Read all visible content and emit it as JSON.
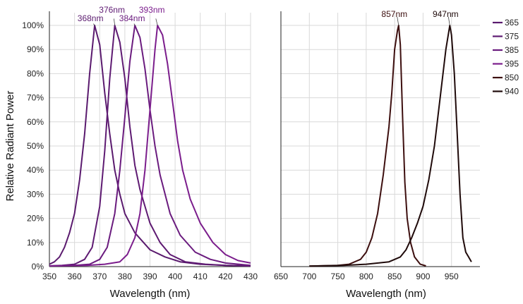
{
  "chart_data": [
    {
      "type": "line",
      "panel": "left",
      "xlabel": "Wavelength (nm)",
      "ylabel": "Relative Radiant Power",
      "xlim": [
        350,
        430
      ],
      "ylim": [
        0,
        100
      ],
      "x_ticks": [
        "350",
        "360",
        "370",
        "380",
        "390",
        "400",
        "410",
        "420",
        "430"
      ],
      "y_ticks": [
        "0%",
        "10%",
        "20%",
        "30%",
        "40%",
        "50%",
        "60%",
        "70%",
        "80%",
        "90%",
        "100%"
      ],
      "grid": true,
      "peak_labels": [
        "368nm",
        "376nm",
        "384nm",
        "393nm"
      ],
      "series": [
        {
          "name": "365",
          "color": "#5a1a6e",
          "peak": 368,
          "fwhm": 10,
          "points": [
            [
              350,
              1
            ],
            [
              352,
              2
            ],
            [
              354,
              4
            ],
            [
              356,
              8
            ],
            [
              358,
              14
            ],
            [
              360,
              22
            ],
            [
              362,
              36
            ],
            [
              364,
              55
            ],
            [
              366,
              80
            ],
            [
              368,
              100
            ],
            [
              370,
              92
            ],
            [
              372,
              72
            ],
            [
              374,
              55
            ],
            [
              376,
              40
            ],
            [
              378,
              30
            ],
            [
              380,
              22
            ],
            [
              384,
              14
            ],
            [
              390,
              7
            ],
            [
              396,
              4
            ],
            [
              402,
              2
            ],
            [
              410,
              1
            ],
            [
              420,
              0.5
            ],
            [
              430,
              0.3
            ]
          ]
        },
        {
          "name": "375",
          "color": "#5e1a72",
          "peak": 376,
          "fwhm": 10,
          "points": [
            [
              350,
              0.3
            ],
            [
              355,
              0.5
            ],
            [
              360,
              1
            ],
            [
              364,
              3
            ],
            [
              367,
              8
            ],
            [
              370,
              25
            ],
            [
              372,
              48
            ],
            [
              374,
              78
            ],
            [
              376,
              100
            ],
            [
              378,
              93
            ],
            [
              380,
              78
            ],
            [
              382,
              58
            ],
            [
              384,
              42
            ],
            [
              386,
              32
            ],
            [
              390,
              18
            ],
            [
              394,
              10
            ],
            [
              398,
              5
            ],
            [
              404,
              2
            ],
            [
              412,
              1
            ],
            [
              420,
              0.5
            ],
            [
              430,
              0.3
            ]
          ]
        },
        {
          "name": "385",
          "color": "#6a1b7e",
          "peak": 384,
          "fwhm": 12,
          "points": [
            [
              350,
              0.3
            ],
            [
              360,
              0.5
            ],
            [
              366,
              1
            ],
            [
              370,
              3
            ],
            [
              373,
              8
            ],
            [
              376,
              22
            ],
            [
              378,
              40
            ],
            [
              380,
              62
            ],
            [
              382,
              85
            ],
            [
              384,
              100
            ],
            [
              386,
              95
            ],
            [
              388,
              82
            ],
            [
              390,
              65
            ],
            [
              392,
              50
            ],
            [
              394,
              38
            ],
            [
              398,
              22
            ],
            [
              402,
              13
            ],
            [
              408,
              6
            ],
            [
              414,
              3
            ],
            [
              420,
              1.5
            ],
            [
              430,
              0.5
            ]
          ]
        },
        {
          "name": "395",
          "color": "#7b1d8c",
          "peak": 393,
          "fwhm": 12,
          "points": [
            [
              350,
              0.3
            ],
            [
              365,
              0.5
            ],
            [
              372,
              1
            ],
            [
              378,
              2
            ],
            [
              381,
              5
            ],
            [
              384,
              12
            ],
            [
              386,
              22
            ],
            [
              388,
              40
            ],
            [
              390,
              65
            ],
            [
              392,
              90
            ],
            [
              393,
              100
            ],
            [
              395,
              96
            ],
            [
              397,
              84
            ],
            [
              399,
              68
            ],
            [
              401,
              52
            ],
            [
              403,
              40
            ],
            [
              406,
              28
            ],
            [
              410,
              18
            ],
            [
              415,
              10
            ],
            [
              420,
              5
            ],
            [
              425,
              2.5
            ],
            [
              430,
              1.5
            ]
          ]
        },
        {
          "name": "850",
          "color": "#3d0f0f",
          "peak": 857,
          "fwhm": 30,
          "points": [
            [
              700,
              0.2
            ],
            [
              750,
              0.5
            ],
            [
              770,
              1
            ],
            [
              790,
              3
            ],
            [
              800,
              6
            ],
            [
              810,
              12
            ],
            [
              820,
              22
            ],
            [
              830,
              38
            ],
            [
              840,
              58
            ],
            [
              845,
              72
            ],
            [
              850,
              90
            ],
            [
              855,
              98
            ],
            [
              857,
              100
            ],
            [
              860,
              92
            ],
            [
              864,
              62
            ],
            [
              868,
              35
            ],
            [
              872,
              20
            ],
            [
              878,
              10
            ],
            [
              885,
              4
            ],
            [
              895,
              1
            ],
            [
              905,
              0.3
            ]
          ]
        },
        {
          "name": "940",
          "color": "#1f0a0a",
          "peak": 947,
          "fwhm": 40,
          "points": [
            [
              700,
              0.2
            ],
            [
              760,
              0.5
            ],
            [
              800,
              1
            ],
            [
              840,
              2
            ],
            [
              860,
              4
            ],
            [
              870,
              7
            ],
            [
              880,
              12
            ],
            [
              890,
              18
            ],
            [
              900,
              25
            ],
            [
              910,
              36
            ],
            [
              920,
              50
            ],
            [
              930,
              70
            ],
            [
              940,
              90
            ],
            [
              947,
              100
            ],
            [
              950,
              96
            ],
            [
              955,
              80
            ],
            [
              960,
              55
            ],
            [
              965,
              30
            ],
            [
              970,
              12
            ],
            [
              975,
              6
            ],
            [
              980,
              4
            ],
            [
              985,
              2
            ]
          ]
        }
      ]
    },
    {
      "type": "line",
      "panel": "right",
      "xlabel": "Wavelength (nm)",
      "xlim": [
        650,
        1000
      ],
      "ylim": [
        0,
        100
      ],
      "x_ticks": [
        "650",
        "700",
        "750",
        "800",
        "850",
        "900",
        "950"
      ],
      "grid": true,
      "peak_labels": [
        "857nm",
        "947nm"
      ]
    }
  ],
  "legend": {
    "placement": "top-right",
    "entries": [
      {
        "label": "365",
        "color": "#5a1a6e"
      },
      {
        "label": "375",
        "color": "#5e1a72"
      },
      {
        "label": "385",
        "color": "#6a1b7e"
      },
      {
        "label": "395",
        "color": "#7b1d8c"
      },
      {
        "label": "850",
        "color": "#3d0f0f"
      },
      {
        "label": "940",
        "color": "#1f0a0a"
      }
    ]
  }
}
